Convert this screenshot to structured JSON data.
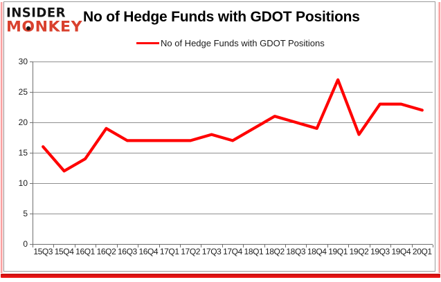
{
  "logo": {
    "line1": "INSIDER",
    "line2": "MONKEY"
  },
  "header": {
    "title": "No of Hedge Funds with GDOT Positions"
  },
  "legend": {
    "label": "No of Hedge Funds with GDOT Positions"
  },
  "chart_data": {
    "type": "line",
    "title": "No of Hedge Funds with GDOT Positions",
    "categories": [
      "15Q3",
      "15Q4",
      "16Q1",
      "16Q2",
      "16Q3",
      "16Q4",
      "17Q1",
      "17Q2",
      "17Q3",
      "17Q4",
      "18Q1",
      "18Q2",
      "18Q3",
      "18Q4",
      "19Q1",
      "19Q2",
      "19Q3",
      "19Q4",
      "20Q1"
    ],
    "series": [
      {
        "name": "No of Hedge Funds with GDOT Positions",
        "color": "#ff0000",
        "values": [
          16,
          12,
          14,
          19,
          17,
          17,
          17,
          17,
          18,
          17,
          19,
          21,
          20,
          19,
          27,
          18,
          23,
          23,
          22
        ]
      }
    ],
    "xlabel": "",
    "ylabel": "",
    "ylim": [
      0,
      30
    ],
    "yticks": [
      0,
      5,
      10,
      15,
      20,
      25,
      30
    ],
    "grid": true,
    "legend_position": "top-center",
    "markers": "none"
  },
  "colors": {
    "series_red": "#ff0000",
    "logo_red": "#d9412e",
    "grid_gray": "#8f8f8f",
    "axis_gray": "#6e6e6e",
    "text_dark": "#1c1c1c",
    "accent_bar_red": "#ee1414"
  }
}
